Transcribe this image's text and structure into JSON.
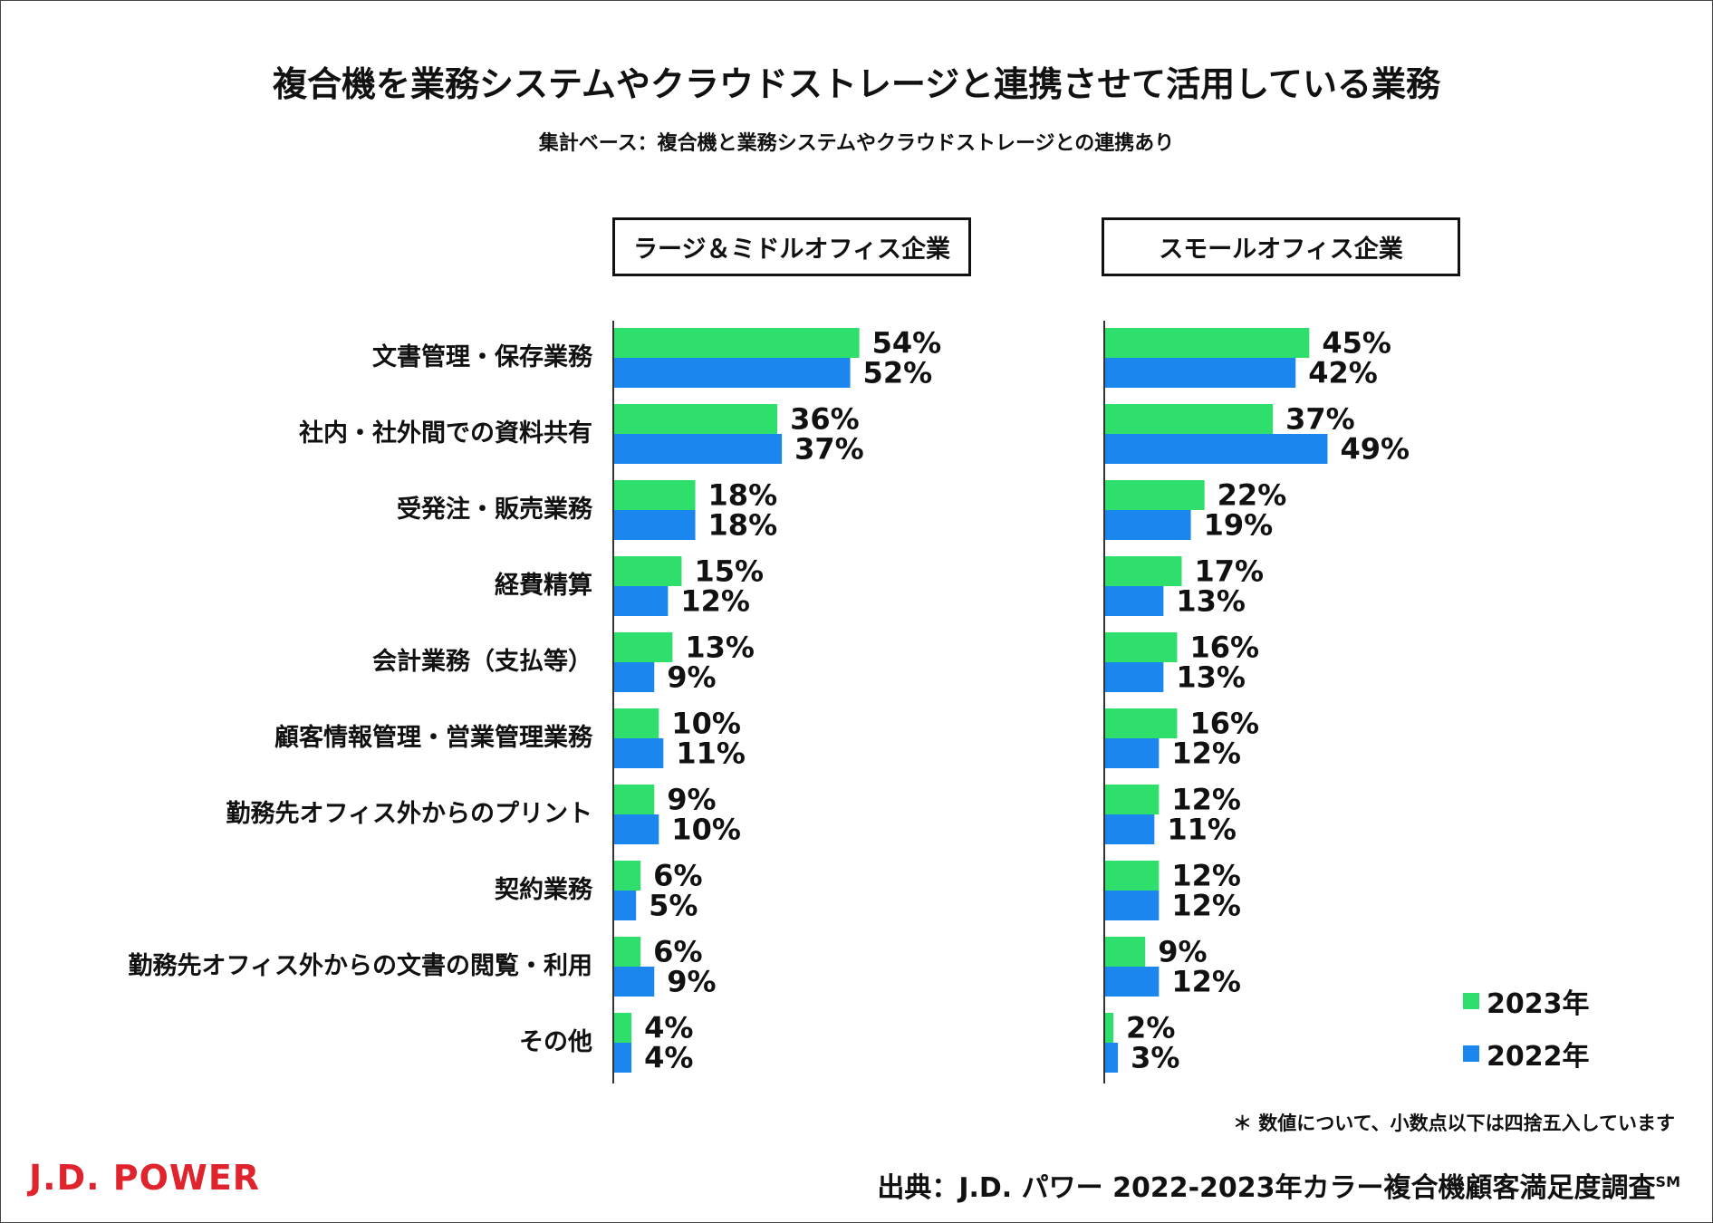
{
  "header": {
    "title": "複合機を業務システムやクラウドストレージと連携させて活用している業務",
    "subtitle": "集計ベース：複合機と業務システムやクラウドストレージとの連携あり"
  },
  "legend": [
    {
      "label": "2023年",
      "color": "#2ee06b"
    },
    {
      "label": "2022年",
      "color": "#1b87ee"
    }
  ],
  "footnote": "＊ 数値について、小数点以下は四捨五入しています",
  "source": {
    "text": "出典：J.D. パワー 2022-2023年カラー複合機顧客満足度調査",
    "mark": "SM"
  },
  "logo": "J.D. POWER",
  "chart_data": [
    {
      "type": "bar",
      "orientation": "horizontal",
      "title": "ラージ＆ミドルオフィス企業",
      "categories": [
        "文書管理・保存業務",
        "社内・社外間での資料共有",
        "受発注・販売業務",
        "経費精算",
        "会計業務（支払等）",
        "顧客情報管理・営業管理業務",
        "勤務先オフィス外からのプリント",
        "契約業務",
        "勤務先オフィス外からの文書の閲覧・利用",
        "その他"
      ],
      "series": [
        {
          "name": "2023年",
          "color": "#2ee06b",
          "values": [
            54,
            36,
            18,
            15,
            13,
            10,
            9,
            6,
            6,
            4
          ],
          "labels": [
            "54%",
            "36%",
            "18%",
            "15%",
            "13%",
            "10%",
            "9%",
            "6%",
            "6%",
            "4%"
          ]
        },
        {
          "name": "2022年",
          "color": "#1b87ee",
          "values": [
            52,
            37,
            18,
            12,
            9,
            11,
            10,
            5,
            9,
            4
          ],
          "labels": [
            "52%",
            "37%",
            "18%",
            "12%",
            "9%",
            "11%",
            "10%",
            "5%",
            "9%",
            "4%"
          ]
        }
      ],
      "xlim": [
        0,
        60
      ]
    },
    {
      "type": "bar",
      "orientation": "horizontal",
      "title": "スモールオフィス企業",
      "categories": [
        "文書管理・保存業務",
        "社内・社外間での資料共有",
        "受発注・販売業務",
        "経費精算",
        "会計業務（支払等）",
        "顧客情報管理・営業管理業務",
        "勤務先オフィス外からのプリント",
        "契約業務",
        "勤務先オフィス外からの文書の閲覧・利用",
        "その他"
      ],
      "series": [
        {
          "name": "2023年",
          "color": "#2ee06b",
          "values": [
            45,
            37,
            22,
            17,
            16,
            16,
            12,
            12,
            9,
            2
          ],
          "labels": [
            "45%",
            "37%",
            "22%",
            "17%",
            "16%",
            "16%",
            "12%",
            "12%",
            "9%",
            "2%"
          ]
        },
        {
          "name": "2022年",
          "color": "#1b87ee",
          "values": [
            42,
            49,
            19,
            13,
            13,
            12,
            11,
            12,
            12,
            3
          ],
          "labels": [
            "42%",
            "49%",
            "19%",
            "13%",
            "13%",
            "12%",
            "11%",
            "12%",
            "12%",
            "3%"
          ]
        }
      ],
      "xlim": [
        0,
        60
      ]
    }
  ]
}
